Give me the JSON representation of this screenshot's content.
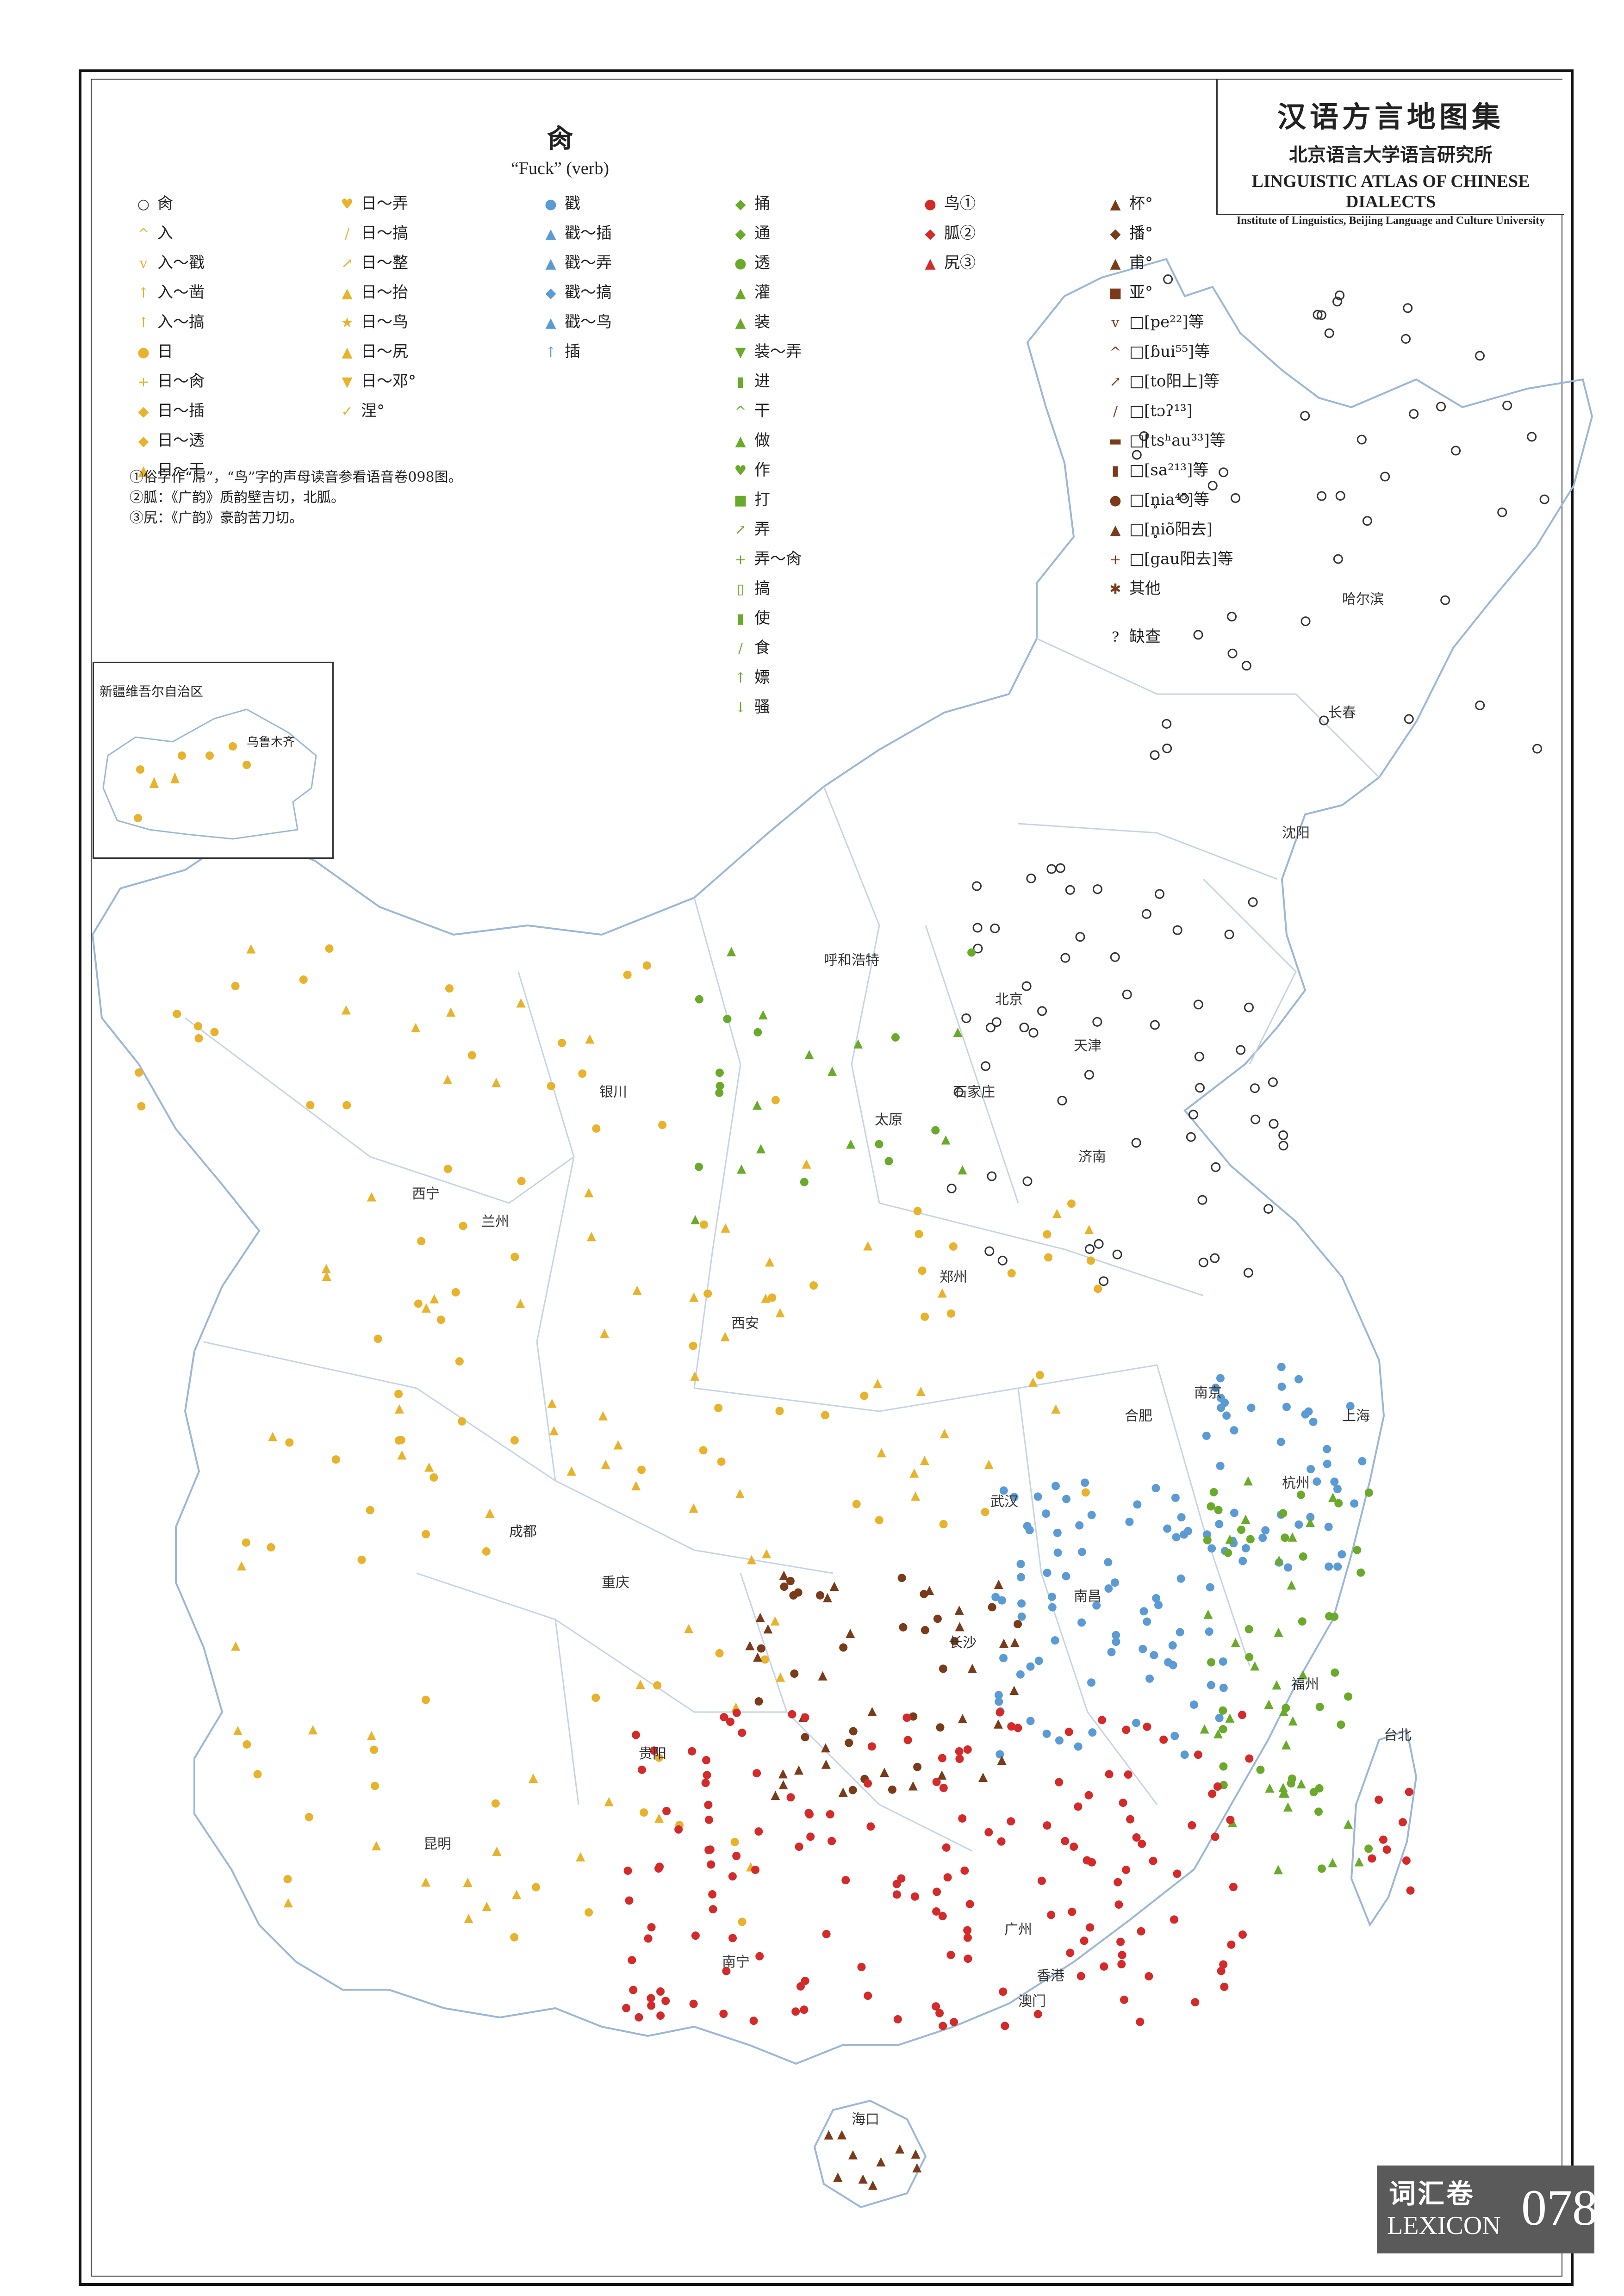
{
  "header": {
    "title_cn": "汉语方言地图集",
    "institute_cn": "北京语言大学语言研究所",
    "title_en": "LINGUISTIC ATLAS OF CHINESE DIALECTS",
    "institute_en": "Institute of Linguistics, Beijing Language and Culture University"
  },
  "map_title": {
    "char": "肏",
    "gloss": "“Fuck” (verb)"
  },
  "legend": [
    {
      "sym": "○",
      "color": "#333333",
      "label": "肏"
    },
    {
      "sym": "^",
      "color": "#e8b22a",
      "label": "入"
    },
    {
      "sym": "v",
      "color": "#e8b22a",
      "label": "入～戳"
    },
    {
      "sym": "↑",
      "color": "#e8b22a",
      "label": "入～凿"
    },
    {
      "sym": "↑",
      "color": "#e8b22a",
      "label": "入～搞"
    },
    {
      "sym": "●",
      "color": "#e8b22a",
      "label": "日"
    },
    {
      "sym": "+",
      "color": "#e8b22a",
      "label": "日～肏"
    },
    {
      "sym": "◆",
      "color": "#e8b22a",
      "label": "日～插"
    },
    {
      "sym": "◆",
      "color": "#e8b22a",
      "label": "日～透"
    },
    {
      "sym": "▲",
      "color": "#e8b22a",
      "label": "日～干"
    },
    {
      "sym": "♥",
      "color": "#e8b22a",
      "label": "日～弄"
    },
    {
      "sym": "/",
      "color": "#e8b22a",
      "label": "日～搞"
    },
    {
      "sym": "↗",
      "color": "#e8b22a",
      "label": "日～整"
    },
    {
      "sym": "▲",
      "color": "#e8b22a",
      "label": "日～抬"
    },
    {
      "sym": "★",
      "color": "#e8b22a",
      "label": "日～鸟"
    },
    {
      "sym": "▲",
      "color": "#e8b22a",
      "label": "日～尻"
    },
    {
      "sym": "▼",
      "color": "#e8b22a",
      "label": "日～邓°"
    },
    {
      "sym": "✓",
      "color": "#e8b22a",
      "label": "涅°"
    },
    {
      "sym": "●",
      "color": "#5b9bd5",
      "label": "戳"
    },
    {
      "sym": "▲",
      "color": "#5b9bd5",
      "label": "戳～插"
    },
    {
      "sym": "▲",
      "color": "#5b9bd5",
      "label": "戳～弄"
    },
    {
      "sym": "◆",
      "color": "#5b9bd5",
      "label": "戳～搞"
    },
    {
      "sym": "▲",
      "color": "#5b9bd5",
      "label": "戳～鸟"
    },
    {
      "sym": "↑",
      "color": "#5b9bd5",
      "label": "插"
    },
    {
      "sym": "◆",
      "color": "#6aaa2a",
      "label": "捅"
    },
    {
      "sym": "◆",
      "color": "#6aaa2a",
      "label": "通"
    },
    {
      "sym": "●",
      "color": "#6aaa2a",
      "label": "透"
    },
    {
      "sym": "▲",
      "color": "#6aaa2a",
      "label": "灌"
    },
    {
      "sym": "▲",
      "color": "#6aaa2a",
      "label": "装"
    },
    {
      "sym": "▼",
      "color": "#6aaa2a",
      "label": "装～弄"
    },
    {
      "sym": "▮",
      "color": "#6aaa2a",
      "label": "进"
    },
    {
      "sym": "^",
      "color": "#6aaa2a",
      "label": "干"
    },
    {
      "sym": "▲",
      "color": "#6aaa2a",
      "label": "做"
    },
    {
      "sym": "♥",
      "color": "#6aaa2a",
      "label": "作"
    },
    {
      "sym": "■",
      "color": "#6aaa2a",
      "label": "打"
    },
    {
      "sym": "↗",
      "color": "#6aaa2a",
      "label": "弄"
    },
    {
      "sym": "+",
      "color": "#6aaa2a",
      "label": "弄～肏"
    },
    {
      "sym": "▯",
      "color": "#6aaa2a",
      "label": "搞"
    },
    {
      "sym": "▮",
      "color": "#6aaa2a",
      "label": "使"
    },
    {
      "sym": "/",
      "color": "#6aaa2a",
      "label": "食"
    },
    {
      "sym": "↑",
      "color": "#6aaa2a",
      "label": "嫖"
    },
    {
      "sym": "↓",
      "color": "#6aaa2a",
      "label": "骚"
    },
    {
      "sym": "●",
      "color": "#d42a2a",
      "label": "鸟①"
    },
    {
      "sym": "◆",
      "color": "#d42a2a",
      "label": "胍②"
    },
    {
      "sym": "▲",
      "color": "#d42a2a",
      "label": "尻③"
    },
    {
      "sym": "▲",
      "color": "#7a3b1a",
      "label": "杯°"
    },
    {
      "sym": "◆",
      "color": "#7a3b1a",
      "label": "播°"
    },
    {
      "sym": "▲",
      "color": "#7a3b1a",
      "label": "甫°"
    },
    {
      "sym": "■",
      "color": "#7a3b1a",
      "label": "亚°"
    },
    {
      "sym": "v",
      "color": "#7a3b1a",
      "label": "□[pe²²]等"
    },
    {
      "sym": "^",
      "color": "#7a3b1a",
      "label": "□[ɓui⁵⁵]等"
    },
    {
      "sym": "↗",
      "color": "#7a3b1a",
      "label": "□[to阳上]等"
    },
    {
      "sym": "/",
      "color": "#7a3b1a",
      "label": "□[tɔʔ¹³]"
    },
    {
      "sym": "▬",
      "color": "#7a3b1a",
      "label": "□[tsʰau³³]等"
    },
    {
      "sym": "▮",
      "color": "#7a3b1a",
      "label": "□[sa²¹³]等"
    },
    {
      "sym": "●",
      "color": "#7a3b1a",
      "label": "□[n̥ia⁴⁵]等"
    },
    {
      "sym": "▲",
      "color": "#7a3b1a",
      "label": "□[n̥iõ阳去]"
    },
    {
      "sym": "+",
      "color": "#7a3b1a",
      "label": "□[gau阳去]等"
    },
    {
      "sym": "✱",
      "color": "#7a3b1a",
      "label": "其他"
    },
    {
      "sym": "?",
      "color": "#111111",
      "label": "缺查"
    }
  ],
  "notes": [
    "①俗字作“屌”，“鸟”字的声母读音参看语音卷098图。",
    "②胍：《广韵》质韵壁吉切，北胍。",
    "③尻：《广韵》豪韵苦刀切。"
  ],
  "inset": {
    "label": "新疆维吾尔自治区",
    "city": "乌鲁木齐"
  },
  "cities": [
    {
      "name": "哈尔滨"
    },
    {
      "name": "长春"
    },
    {
      "name": "沈阳"
    },
    {
      "name": "呼和浩特"
    },
    {
      "name": "北京"
    },
    {
      "name": "天津"
    },
    {
      "name": "石家庄"
    },
    {
      "name": "太原"
    },
    {
      "name": "济南"
    },
    {
      "name": "银川"
    },
    {
      "name": "西宁"
    },
    {
      "name": "兰州"
    },
    {
      "name": "西安"
    },
    {
      "name": "郑州"
    },
    {
      "name": "南京"
    },
    {
      "name": "上海"
    },
    {
      "name": "合肥"
    },
    {
      "name": "杭州"
    },
    {
      "name": "武汉"
    },
    {
      "name": "成都"
    },
    {
      "name": "重庆"
    },
    {
      "name": "南昌"
    },
    {
      "name": "长沙"
    },
    {
      "name": "贵阳"
    },
    {
      "name": "福州"
    },
    {
      "name": "台北"
    },
    {
      "name": "昆明"
    },
    {
      "name": "广州"
    },
    {
      "name": "南宁"
    },
    {
      "name": "香港"
    },
    {
      "name": "澳门"
    },
    {
      "name": "海口"
    }
  ],
  "colors": {
    "black": "#333333",
    "yellow": "#e8b22a",
    "blue": "#5b9bd5",
    "green": "#6aaa2a",
    "red": "#d42a2a",
    "brown": "#7a3b1a"
  },
  "footer": {
    "volume_cn": "词汇卷",
    "volume_en": "LEXICON",
    "page": "078"
  }
}
